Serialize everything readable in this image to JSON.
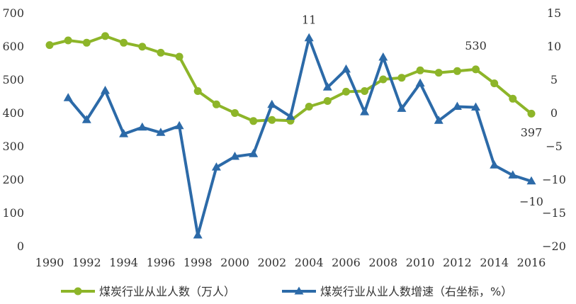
{
  "chart_data": {
    "type": "line",
    "title": "",
    "xlabel": "",
    "ylabel": "",
    "y2label": "",
    "grid": false,
    "legend_position": "bottom",
    "x": [
      1990,
      1991,
      1992,
      1993,
      1994,
      1995,
      1996,
      1997,
      1998,
      1999,
      2000,
      2001,
      2002,
      2003,
      2004,
      2005,
      2006,
      2007,
      2008,
      2009,
      2010,
      2011,
      2012,
      2013,
      2014,
      2015,
      2016
    ],
    "xticks": [
      "1990",
      "1992",
      "1994",
      "1996",
      "1998",
      "2000",
      "2002",
      "2004",
      "2006",
      "2008",
      "2010",
      "2012",
      "2014",
      "2016"
    ],
    "ylim": [
      0,
      700
    ],
    "yticks": [
      "0",
      "100",
      "200",
      "300",
      "400",
      "500",
      "600",
      "700"
    ],
    "y2lim": [
      -20,
      15
    ],
    "y2ticks": [
      "15",
      "10",
      "5",
      "0",
      "−5",
      "−10",
      "−15",
      "−20"
    ],
    "series": [
      {
        "name": "煤炭行业从业人数（万人）",
        "axis": "left",
        "color": "#8db529",
        "marker": "circle",
        "values": [
          603,
          617,
          610,
          630,
          610,
          598,
          580,
          568,
          465,
          425,
          399,
          375,
          378,
          376,
          418,
          435,
          463,
          465,
          500,
          505,
          527,
          520,
          525,
          530,
          488,
          442,
          397
        ]
      },
      {
        "name": "煤炭行业从业人数增速（右坐标，%）",
        "axis": "right",
        "color": "#2c6aa8",
        "marker": "triangle",
        "values": [
          null,
          2.2,
          -1.1,
          3.3,
          -3.2,
          -2.2,
          -3.0,
          -2.0,
          -18.4,
          -8.2,
          -6.6,
          -6.2,
          1.2,
          -0.6,
          11.2,
          3.8,
          6.5,
          0.1,
          8.3,
          0.6,
          4.4,
          -1.2,
          0.9,
          0.8,
          -7.9,
          -9.4,
          -10.3
        ]
      }
    ],
    "annotations": [
      {
        "text": "11",
        "series": 1,
        "x": 2004
      },
      {
        "text": "530",
        "series": 0,
        "x": 2013
      },
      {
        "text": "397",
        "series": 0,
        "x": 2016
      },
      {
        "text": "−10",
        "series": 1,
        "x": 2016
      }
    ]
  }
}
